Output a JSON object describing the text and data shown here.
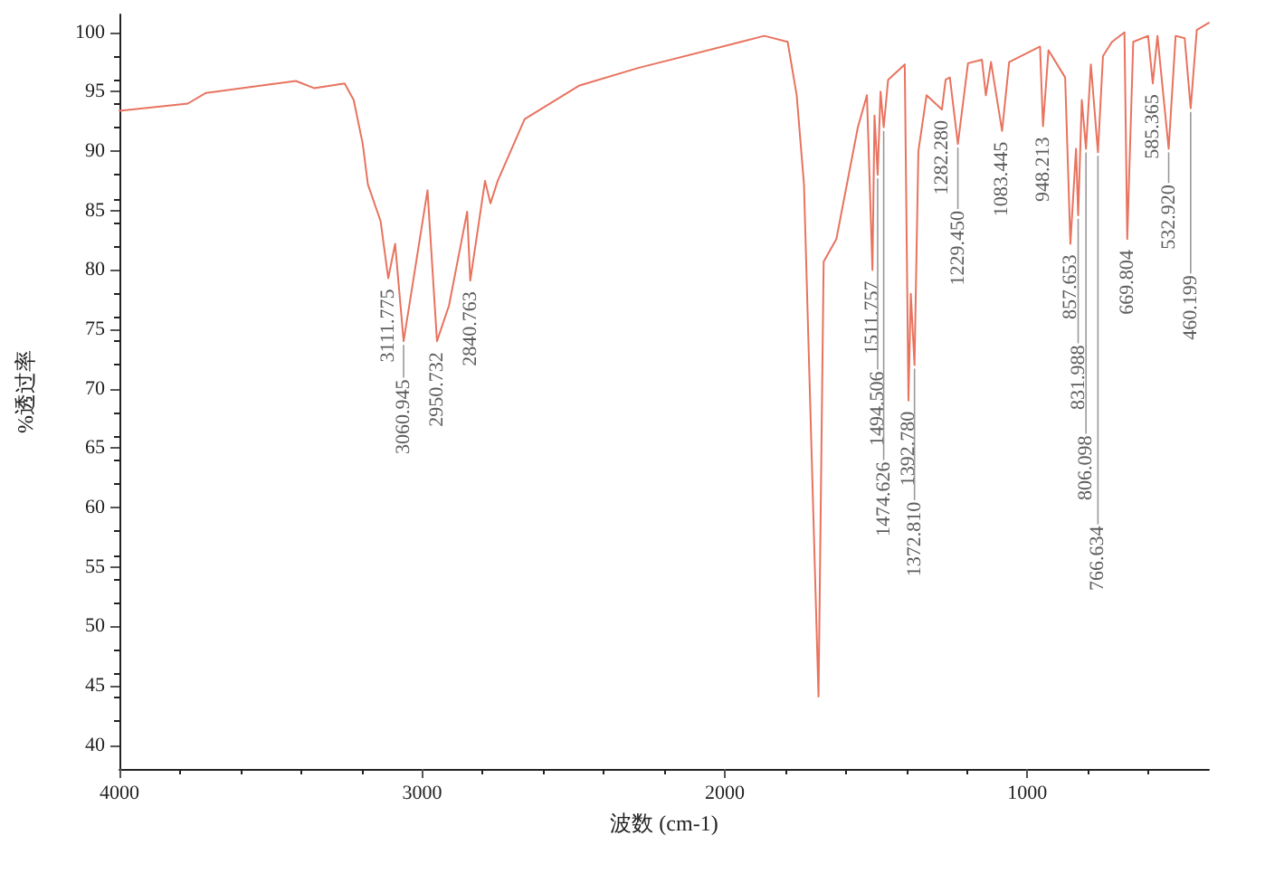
{
  "chart_data": {
    "type": "line",
    "xlabel": "波数 (cm-1)",
    "ylabel": "%透过率",
    "xlim": [
      4000,
      400
    ],
    "xticks": [
      4000,
      3000,
      2000,
      1000
    ],
    "ylim": [
      38,
      101.5
    ],
    "yticks": [
      40,
      45,
      50,
      55,
      60,
      65,
      70,
      75,
      80,
      85,
      90,
      95,
      100
    ],
    "marker": "none",
    "line_style": "solid",
    "series": [
      {
        "color": "#e8735f",
        "x": [
          4000,
          3774,
          3714,
          3536,
          3417,
          3357,
          3256,
          3226,
          3196,
          3179,
          3137,
          3111.775,
          3089,
          3060.945,
          2982,
          2950.732,
          2911,
          2851,
          2840.763,
          2792,
          2774,
          2750,
          2661,
          2482,
          2286,
          1946,
          1869,
          1792,
          1762,
          1738,
          1690,
          1673,
          1631,
          1560,
          1530,
          1511.757,
          1505,
          1494.506,
          1485,
          1474.626,
          1460,
          1405,
          1392.78,
          1385,
          1372.81,
          1360,
          1333,
          1282.28,
          1270,
          1256,
          1229.45,
          1196,
          1150,
          1137,
          1120,
          1083.445,
          1060,
          958,
          948.213,
          930,
          875,
          857.653,
          839,
          831.988,
          820,
          806.098,
          790,
          766.634,
          750,
          720,
          679,
          669.804,
          650,
          601,
          585.365,
          570,
          532.92,
          510,
          480,
          460.199,
          440,
          400
        ],
        "values": [
          93.4,
          94.0,
          94.9,
          95.5,
          95.9,
          95.3,
          95.7,
          94.3,
          90.6,
          87.2,
          84.1,
          79.3,
          82.2,
          74.0,
          86.7,
          74.0,
          77.0,
          84.9,
          79.1,
          87.5,
          85.6,
          87.5,
          92.7,
          95.5,
          97.0,
          99.2,
          99.7,
          99.2,
          94.7,
          87.2,
          44.1,
          80.7,
          82.6,
          92,
          94.7,
          80,
          93,
          88,
          95,
          92,
          96,
          97.3,
          69,
          78,
          72,
          90,
          94.7,
          93.5,
          96,
          96.2,
          90.6,
          97.4,
          97.7,
          94.7,
          97.5,
          91.7,
          97.5,
          98.8,
          92.1,
          98.5,
          96.2,
          82.2,
          90.2,
          84.6,
          94.3,
          90.2,
          97.3,
          89.9,
          98,
          99.2,
          100,
          82.6,
          99.2,
          99.7,
          95.7,
          99.7,
          90.2,
          99.7,
          99.5,
          93.6,
          100.2,
          100.8
        ]
      }
    ],
    "annotations": [
      {
        "text": "3111.775",
        "x": 3111.775,
        "y": 79.3
      },
      {
        "text": "3060.945",
        "x": 3060.945,
        "y": 74.0
      },
      {
        "text": "2950.732",
        "x": 2950.732,
        "y": 74.0
      },
      {
        "text": "2840.763",
        "x": 2840.763,
        "y": 79.1
      },
      {
        "text": "1511.757",
        "x": 1511.757,
        "y": 80
      },
      {
        "text": "1494.506",
        "x": 1494.506,
        "y": 88
      },
      {
        "text": "1474.626",
        "x": 1474.626,
        "y": 92
      },
      {
        "text": "1392.780",
        "x": 1392.78,
        "y": 69
      },
      {
        "text": "1372.810",
        "x": 1372.81,
        "y": 72
      },
      {
        "text": "1282.280",
        "x": 1282.28,
        "y": 93.5
      },
      {
        "text": "1229.450",
        "x": 1229.45,
        "y": 90.6
      },
      {
        "text": "1083.445",
        "x": 1083.445,
        "y": 91.7
      },
      {
        "text": "948.213",
        "x": 948.213,
        "y": 92.1
      },
      {
        "text": "857.653",
        "x": 857.653,
        "y": 82.2
      },
      {
        "text": "831.988",
        "x": 831.988,
        "y": 84.6
      },
      {
        "text": "806.098",
        "x": 806.098,
        "y": 90.2
      },
      {
        "text": "766.634",
        "x": 766.634,
        "y": 89.9
      },
      {
        "text": "669.804",
        "x": 669.804,
        "y": 82.6
      },
      {
        "text": "585.365",
        "x": 585.365,
        "y": 95.7
      },
      {
        "text": "532.920",
        "x": 532.92,
        "y": 90.2
      },
      {
        "text": "460.199",
        "x": 460.199,
        "y": 93.6
      }
    ]
  }
}
